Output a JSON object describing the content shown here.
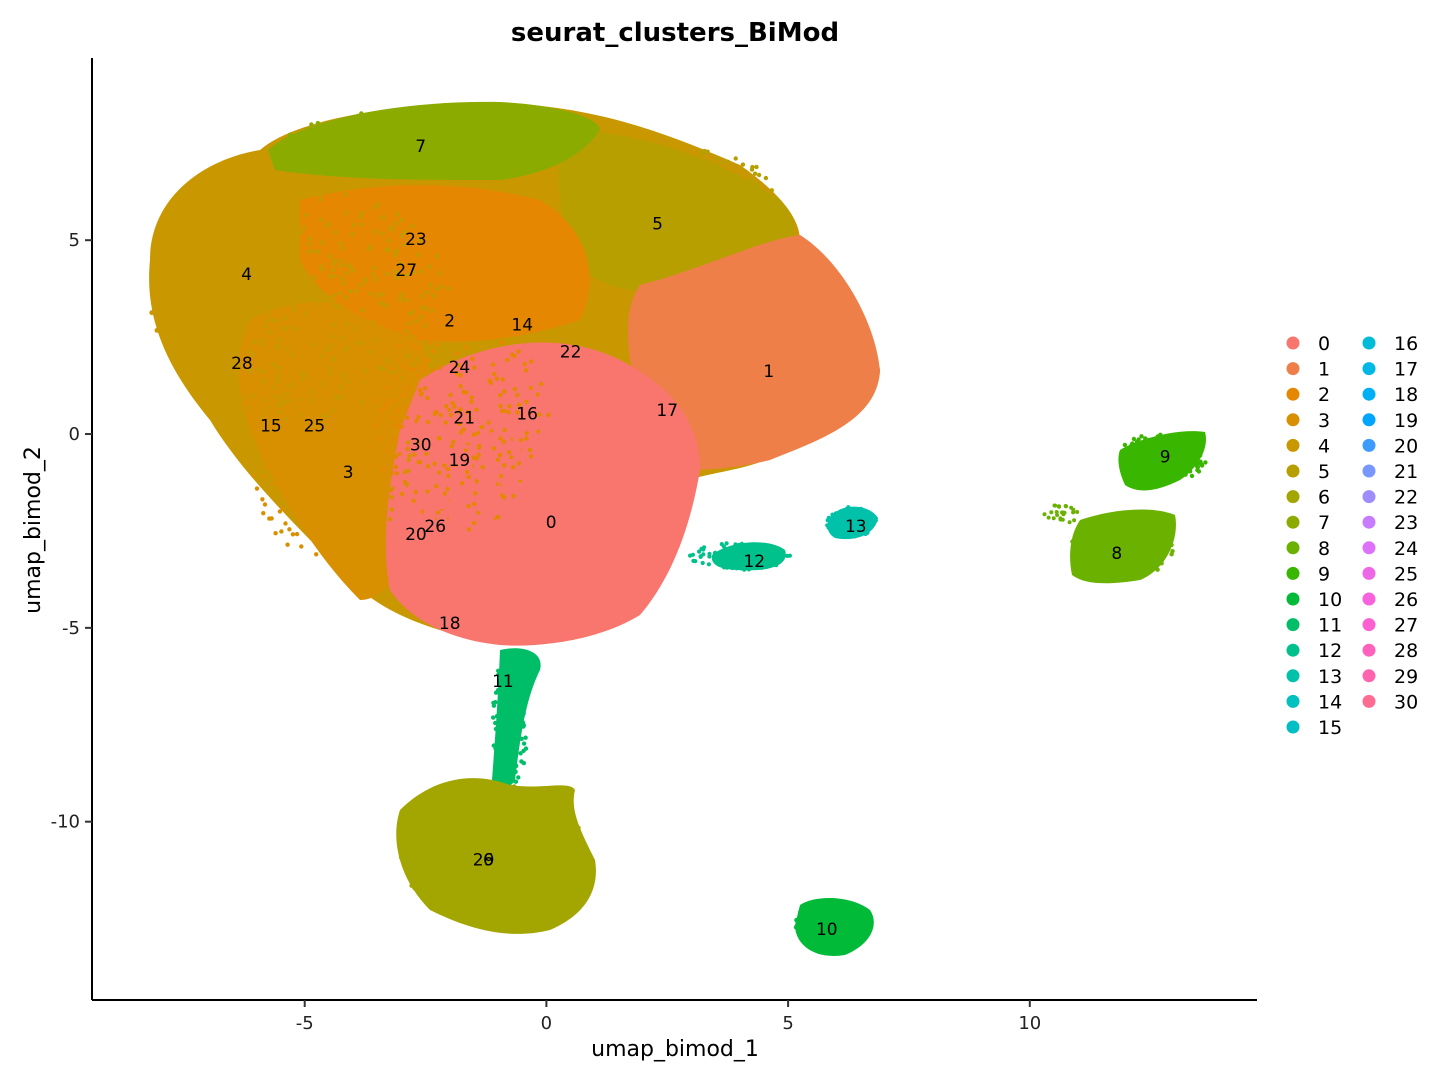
{
  "chart_data": {
    "type": "scatter",
    "title": "seurat_clusters_BiMod",
    "xlabel": "umap_bimod_1",
    "ylabel": "umap_bimod_2",
    "xlim": [
      -9.4,
      14.7
    ],
    "ylim": [
      -14.6,
      9.7
    ],
    "xticks": [
      -5,
      0,
      5,
      10
    ],
    "yticks": [
      5,
      0,
      -5,
      -10
    ],
    "xtick_labels": [
      "-5",
      "0",
      "5",
      "10"
    ],
    "ytick_labels": [
      "5",
      "0",
      "-5",
      "-10"
    ],
    "legend_position": "right",
    "legend": [
      {
        "name": "0",
        "color": "#F8766D"
      },
      {
        "name": "1",
        "color": "#EF7F49"
      },
      {
        "name": "2",
        "color": "#E58700"
      },
      {
        "name": "3",
        "color": "#D89000"
      },
      {
        "name": "4",
        "color": "#C99800"
      },
      {
        "name": "5",
        "color": "#B79F00"
      },
      {
        "name": "6",
        "color": "#A3A500"
      },
      {
        "name": "7",
        "color": "#8CAB00"
      },
      {
        "name": "8",
        "color": "#6BB100"
      },
      {
        "name": "9",
        "color": "#39B600"
      },
      {
        "name": "10",
        "color": "#00BA38"
      },
      {
        "name": "11",
        "color": "#00BE67"
      },
      {
        "name": "12",
        "color": "#00C08B"
      },
      {
        "name": "13",
        "color": "#00C1A9"
      },
      {
        "name": "14",
        "color": "#00C0C0"
      },
      {
        "name": "15",
        "color": "#00BFC4"
      },
      {
        "name": "16",
        "color": "#00BCD8"
      },
      {
        "name": "17",
        "color": "#00B8E7"
      },
      {
        "name": "18",
        "color": "#00B0F6"
      },
      {
        "name": "19",
        "color": "#00A5FF"
      },
      {
        "name": "20",
        "color": "#3D9BFF"
      },
      {
        "name": "21",
        "color": "#7997FF"
      },
      {
        "name": "22",
        "color": "#9F8CFF"
      },
      {
        "name": "23",
        "color": "#C77CFF"
      },
      {
        "name": "24",
        "color": "#DD71FA"
      },
      {
        "name": "25",
        "color": "#EE67E6"
      },
      {
        "name": "26",
        "color": "#F962DD"
      },
      {
        "name": "27",
        "color": "#FD61D1"
      },
      {
        "name": "28",
        "color": "#FF62BC"
      },
      {
        "name": "29",
        "color": "#FF65AE"
      },
      {
        "name": "30",
        "color": "#FF6C91"
      }
    ],
    "cluster_labels": [
      {
        "label": "0",
        "x": 0.1,
        "y": -2.3
      },
      {
        "label": "1",
        "x": 4.6,
        "y": 1.6
      },
      {
        "label": "2",
        "x": -2.0,
        "y": 2.9
      },
      {
        "label": "3",
        "x": -4.1,
        "y": -1.0
      },
      {
        "label": "4",
        "x": -6.2,
        "y": 4.1
      },
      {
        "label": "5",
        "x": 2.3,
        "y": 5.4
      },
      {
        "label": "6",
        "x": -1.2,
        "y": -11.0
      },
      {
        "label": "7",
        "x": -2.6,
        "y": 7.4
      },
      {
        "label": "8",
        "x": 11.8,
        "y": -3.1
      },
      {
        "label": "9",
        "x": 12.8,
        "y": -0.6
      },
      {
        "label": "10",
        "x": 5.8,
        "y": -12.8
      },
      {
        "label": "11",
        "x": -0.9,
        "y": -6.4
      },
      {
        "label": "12",
        "x": 4.3,
        "y": -3.3
      },
      {
        "label": "13",
        "x": 6.4,
        "y": -2.4
      },
      {
        "label": "14",
        "x": -0.5,
        "y": 2.8
      },
      {
        "label": "15",
        "x": -5.7,
        "y": 0.2
      },
      {
        "label": "16",
        "x": -0.4,
        "y": 0.5
      },
      {
        "label": "17",
        "x": 2.5,
        "y": 0.6
      },
      {
        "label": "18",
        "x": -2.0,
        "y": -4.9
      },
      {
        "label": "19",
        "x": -1.8,
        "y": -0.7
      },
      {
        "label": "20",
        "x": -2.7,
        "y": -2.6
      },
      {
        "label": "21",
        "x": -1.7,
        "y": 0.4
      },
      {
        "label": "22",
        "x": 0.5,
        "y": 2.1
      },
      {
        "label": "23",
        "x": -2.7,
        "y": 5.0
      },
      {
        "label": "24",
        "x": -1.8,
        "y": 1.7
      },
      {
        "label": "25",
        "x": -4.8,
        "y": 0.2
      },
      {
        "label": "26",
        "x": -2.3,
        "y": -2.4
      },
      {
        "label": "27",
        "x": -2.9,
        "y": 4.2
      },
      {
        "label": "28",
        "x": -6.3,
        "y": 1.8
      },
      {
        "label": "29",
        "x": -1.3,
        "y": -11.0
      },
      {
        "label": "30",
        "x": -2.6,
        "y": -0.3
      }
    ]
  }
}
